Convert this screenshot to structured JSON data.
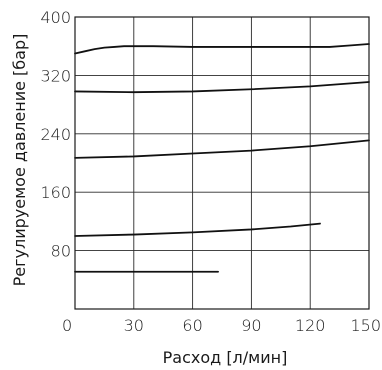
{
  "chart_data": {
    "type": "line",
    "xlabel": "Расход [л/мин]",
    "ylabel": "Регулируемое давление [бар]",
    "xlim": [
      0,
      150
    ],
    "ylim": [
      0,
      400
    ],
    "x_ticks": [
      0,
      30,
      60,
      90,
      120,
      150
    ],
    "y_ticks": [
      80,
      160,
      240,
      320,
      400
    ],
    "x_tick_labels": [
      "0",
      "30",
      "60",
      "90",
      "120",
      "150"
    ],
    "y_tick_labels": [
      "80",
      "160",
      "240",
      "320",
      "400"
    ],
    "grid": true,
    "legend": "none",
    "series": [
      {
        "x": [
          0,
          5,
          10,
          15,
          20,
          25,
          30,
          40,
          60,
          80,
          100,
          120,
          130,
          140,
          150
        ],
        "y": [
          350,
          353,
          356,
          358,
          359,
          360,
          360,
          360,
          359,
          359,
          359,
          359,
          359,
          361,
          363
        ]
      },
      {
        "x": [
          0,
          30,
          60,
          90,
          120,
          150
        ],
        "y": [
          298,
          297,
          298,
          301,
          305,
          311
        ]
      },
      {
        "x": [
          0,
          30,
          60,
          90,
          120,
          150
        ],
        "y": [
          207,
          209,
          213,
          217,
          223,
          231
        ]
      },
      {
        "x": [
          0,
          30,
          60,
          90,
          110,
          125
        ],
        "y": [
          100,
          102,
          105,
          109,
          113,
          117
        ]
      },
      {
        "x": [
          0,
          73
        ],
        "y": [
          51,
          51
        ]
      }
    ]
  }
}
